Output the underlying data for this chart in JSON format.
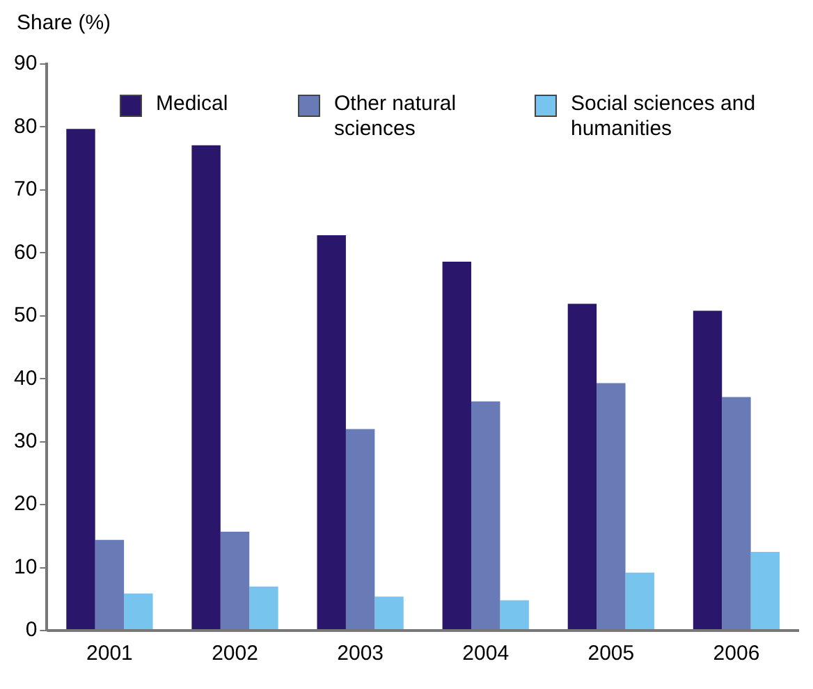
{
  "chart_data": {
    "type": "bar",
    "ylabel": "Share (%)",
    "categories": [
      "2001",
      "2002",
      "2003",
      "2004",
      "2005",
      "2006"
    ],
    "series": [
      {
        "name": "Medical",
        "color": "#2a176b",
        "values": [
          79.7,
          77.1,
          62.8,
          58.6,
          51.9,
          50.8
        ]
      },
      {
        "name": "Other natural sciences",
        "color": "#687bb6",
        "values": [
          14.4,
          15.7,
          32.0,
          36.4,
          39.3,
          37.1
        ]
      },
      {
        "name": "Social sciences and humanities",
        "color": "#77c4ee",
        "values": [
          5.9,
          7.0,
          5.4,
          4.8,
          9.2,
          12.5
        ]
      }
    ],
    "ylim": [
      0,
      90
    ],
    "yticks": [
      0,
      10,
      20,
      30,
      40,
      50,
      60,
      70,
      80,
      90
    ],
    "grid": false,
    "legend": "top"
  }
}
